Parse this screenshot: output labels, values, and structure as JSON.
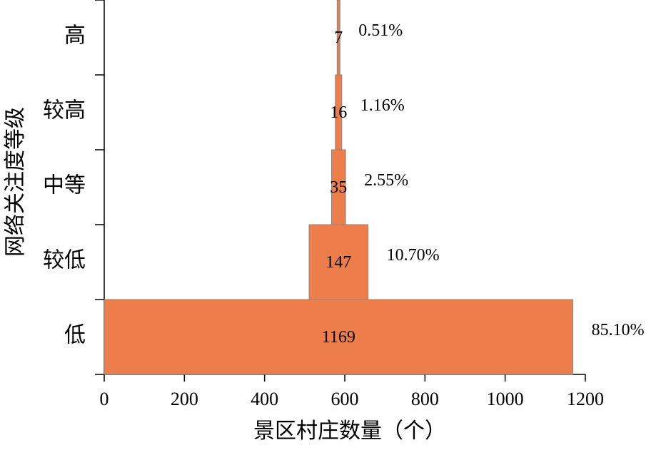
{
  "chart_data": {
    "type": "funnel",
    "xlabel": "景区村庄数量（个）",
    "ylabel": "网络关注度等级",
    "categories": [
      "高",
      "较高",
      "中等",
      "较低",
      "低"
    ],
    "values": [
      7,
      16,
      35,
      147,
      1169
    ],
    "percents": [
      0.51,
      1.16,
      2.55,
      10.7,
      85.1
    ],
    "percent_labels": [
      "0.51%",
      "1.16%",
      "2.55%",
      "10.70%",
      "85.10%"
    ],
    "color": "#ed7d4b",
    "xlim": [
      0,
      1200
    ],
    "xticks": [
      0,
      200,
      400,
      600,
      800,
      1000,
      1200
    ]
  }
}
